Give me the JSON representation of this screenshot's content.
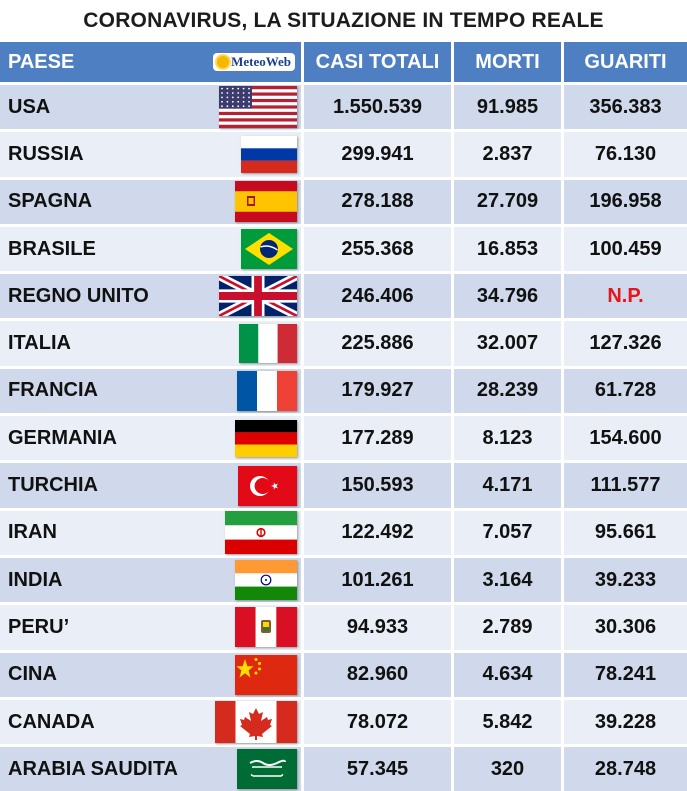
{
  "title": "CORONAVIRUS, LA SITUAZIONE IN TEMPO REALE",
  "logo_text": "MeteoWeb",
  "headers": {
    "paese": "PAESE",
    "casi": "CASI TOTALI",
    "morti": "MORTI",
    "guariti": "GUARITI"
  },
  "colors": {
    "header_bg": "#4f7fc3",
    "row_odd": "#cfd9eb",
    "row_even": "#e9eef7",
    "np_red": "#e8141b"
  },
  "rows": [
    {
      "paese": "USA",
      "flag": "usa-flag-icon",
      "casi": "1.550.539",
      "morti": "91.985",
      "guariti": "356.383"
    },
    {
      "paese": "RUSSIA",
      "flag": "russia-flag-icon",
      "casi": "299.941",
      "morti": "2.837",
      "guariti": "76.130"
    },
    {
      "paese": "SPAGNA",
      "flag": "spain-flag-icon",
      "casi": "278.188",
      "morti": "27.709",
      "guariti": "196.958"
    },
    {
      "paese": "BRASILE",
      "flag": "brazil-flag-icon",
      "casi": "255.368",
      "morti": "16.853",
      "guariti": "100.459"
    },
    {
      "paese": "REGNO UNITO",
      "flag": "uk-flag-icon",
      "casi": "246.406",
      "morti": "34.796",
      "guariti": "N.P."
    },
    {
      "paese": "ITALIA",
      "flag": "italy-flag-icon",
      "casi": "225.886",
      "morti": "32.007",
      "guariti": "127.326"
    },
    {
      "paese": "FRANCIA",
      "flag": "france-flag-icon",
      "casi": "179.927",
      "morti": "28.239",
      "guariti": "61.728"
    },
    {
      "paese": "GERMANIA",
      "flag": "germany-flag-icon",
      "casi": "177.289",
      "morti": "8.123",
      "guariti": "154.600"
    },
    {
      "paese": "TURCHIA",
      "flag": "turkey-flag-icon",
      "casi": "150.593",
      "morti": "4.171",
      "guariti": "111.577"
    },
    {
      "paese": "IRAN",
      "flag": "iran-flag-icon",
      "casi": "122.492",
      "morti": "7.057",
      "guariti": "95.661"
    },
    {
      "paese": "INDIA",
      "flag": "india-flag-icon",
      "casi": "101.261",
      "morti": "3.164",
      "guariti": "39.233"
    },
    {
      "paese": "PERU’",
      "flag": "peru-flag-icon",
      "casi": "94.933",
      "morti": "2.789",
      "guariti": "30.306"
    },
    {
      "paese": "CINA",
      "flag": "china-flag-icon",
      "casi": "82.960",
      "morti": "4.634",
      "guariti": "78.241"
    },
    {
      "paese": "CANADA",
      "flag": "canada-flag-icon",
      "casi": "78.072",
      "morti": "5.842",
      "guariti": "39.228"
    },
    {
      "paese": "ARABIA SAUDITA",
      "flag": "saudi-arabia-flag-icon",
      "casi": "57.345",
      "morti": "320",
      "guariti": "28.748"
    }
  ]
}
